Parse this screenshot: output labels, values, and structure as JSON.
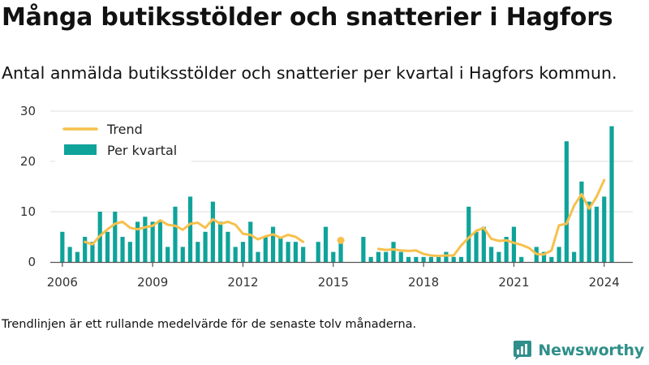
{
  "header": {
    "title": "Många butiksstölder och snatterier i Hagfors",
    "subtitle": "Antal anmälda butiksstölder och snatterier per kvartal i Hagfors kommun."
  },
  "footer": {
    "note": "Trendlinjen är ett rullande medelvärde för de senaste tolv månaderna.",
    "brand": "Newsworthy"
  },
  "colors": {
    "bar": "#0fa39a",
    "trend": "#f7c04c",
    "grid": "#dddddd",
    "axis": "#555555",
    "brand": "#2f8f8a"
  },
  "icons": {
    "brand_logo": "newsworthy-logo-icon"
  },
  "chart_data": {
    "type": "bar",
    "title": "Många butiksstölder och snatterier i Hagfors",
    "subtitle": "Antal anmälda butiksstölder och snatterier per kvartal i Hagfors kommun.",
    "xlabel": "",
    "ylabel": "",
    "xlim": [
      2005.6,
      2024.95
    ],
    "ylim": [
      0,
      30
    ],
    "y_ticks": [
      0,
      10,
      20,
      30
    ],
    "x_ticks": [
      2006,
      2009,
      2012,
      2015,
      2018,
      2021,
      2024
    ],
    "grid": true,
    "legend": {
      "placement": "top-left",
      "entries": [
        "Trend",
        "Per kvartal"
      ]
    },
    "series": [
      {
        "name": "Per kvartal",
        "kind": "bar",
        "start_year": 2006,
        "values": [
          6,
          3,
          2,
          5,
          4,
          10,
          6,
          10,
          5,
          4,
          8,
          9,
          8,
          8,
          3,
          11,
          3,
          13,
          4,
          6,
          12,
          8,
          6,
          3,
          4,
          8,
          2,
          5,
          7,
          5,
          4,
          4,
          3,
          0,
          4,
          7,
          2,
          4,
          0,
          0,
          5,
          1,
          2,
          2,
          4,
          2,
          1,
          1,
          1,
          1,
          1,
          2,
          1,
          1,
          11,
          6,
          7,
          3,
          2,
          5,
          7,
          1,
          0,
          3,
          2,
          1,
          3,
          24,
          2,
          16,
          12,
          11,
          13,
          27
        ]
      },
      {
        "name": "Trend",
        "kind": "line",
        "segments": [
          [
            [
              2006.75,
              4
            ],
            [
              2007.0,
              3.5
            ],
            [
              2007.25,
              5.2
            ],
            [
              2007.5,
              6.5
            ],
            [
              2007.75,
              7.6
            ],
            [
              2008.0,
              8.0
            ],
            [
              2008.25,
              6.8
            ],
            [
              2008.5,
              6.5
            ],
            [
              2008.75,
              6.9
            ],
            [
              2009.0,
              7.2
            ],
            [
              2009.25,
              8.3
            ],
            [
              2009.5,
              7.4
            ],
            [
              2009.75,
              7.2
            ],
            [
              2010.0,
              6.4
            ],
            [
              2010.25,
              7.6
            ],
            [
              2010.5,
              7.8
            ],
            [
              2010.75,
              6.8
            ],
            [
              2011.0,
              8.5
            ],
            [
              2011.25,
              7.6
            ],
            [
              2011.5,
              8.0
            ],
            [
              2011.75,
              7.4
            ],
            [
              2012.0,
              5.6
            ],
            [
              2012.25,
              5.4
            ],
            [
              2012.5,
              4.5
            ],
            [
              2012.75,
              5.1
            ],
            [
              2013.0,
              5.5
            ],
            [
              2013.25,
              4.8
            ],
            [
              2013.5,
              5.4
            ],
            [
              2013.75,
              5.0
            ],
            [
              2014.0,
              4.0
            ]
          ],
          [
            [
              2015.25,
              4.3
            ]
          ],
          [
            [
              2016.5,
              2.6
            ],
            [
              2016.75,
              2.4
            ],
            [
              2017.0,
              2.5
            ],
            [
              2017.25,
              2.3
            ],
            [
              2017.5,
              2.2
            ],
            [
              2017.75,
              2.3
            ],
            [
              2018.0,
              1.6
            ],
            [
              2018.25,
              1.3
            ],
            [
              2018.5,
              1.2
            ],
            [
              2018.75,
              1.3
            ],
            [
              2019.0,
              1.3
            ],
            [
              2019.25,
              3.3
            ],
            [
              2019.5,
              4.8
            ],
            [
              2019.75,
              6.2
            ],
            [
              2020.0,
              6.8
            ],
            [
              2020.25,
              4.6
            ],
            [
              2020.5,
              4.2
            ],
            [
              2020.75,
              4.3
            ],
            [
              2021.0,
              3.8
            ],
            [
              2021.25,
              3.4
            ],
            [
              2021.5,
              2.8
            ],
            [
              2021.75,
              1.6
            ],
            [
              2022.0,
              1.5
            ],
            [
              2022.25,
              2.3
            ],
            [
              2022.5,
              7.3
            ],
            [
              2022.75,
              7.6
            ],
            [
              2023.0,
              11.2
            ],
            [
              2023.25,
              13.5
            ],
            [
              2023.5,
              10.6
            ],
            [
              2023.75,
              13.0
            ],
            [
              2024.0,
              16.3
            ]
          ]
        ]
      }
    ]
  }
}
